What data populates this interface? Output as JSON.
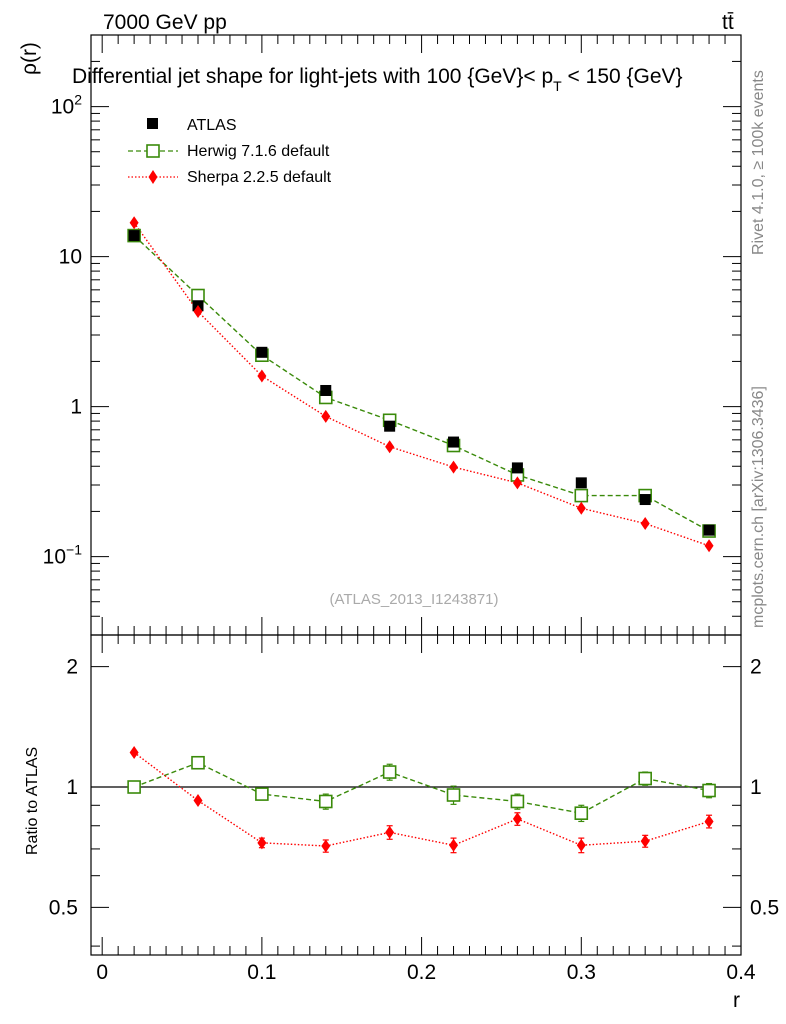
{
  "header": {
    "energy": "7000 GeV pp",
    "process": "tt̄",
    "title": "Differential jet shape for light-jets with 100 {GeV}< p",
    "title_sub": "T",
    "title_tail": " < 150 {GeV}",
    "side_rivet": "Rivet 4.1.0, ≥ 100k events",
    "side_mcplots": "mcplots.cern.ch [arXiv:1306.3436]",
    "watermark": "(ATLAS_2013_I1243871)"
  },
  "colors": {
    "atlas": "#000000",
    "herwig": "#3a8a0a",
    "sherpa": "#ff0000"
  },
  "chart_data": [
    {
      "type": "scatter",
      "id": "main",
      "ylabel": "ρ(r)",
      "xlabel": "",
      "yscale": "log",
      "xlim": [
        -0.007,
        0.4
      ],
      "ylim": [
        0.03,
        300
      ],
      "yticks_major": [
        0.1,
        1,
        10,
        100
      ],
      "ytick_labels": [
        "10^-1",
        "1",
        "10",
        "10^2"
      ],
      "legend": [
        "ATLAS",
        "Herwig 7.1.6 default",
        "Sherpa 2.2.5 default"
      ],
      "x": [
        0.02,
        0.06,
        0.1,
        0.14,
        0.18,
        0.22,
        0.26,
        0.3,
        0.34,
        0.38
      ],
      "series": [
        {
          "name": "ATLAS",
          "marker": "filled-square",
          "values": [
            13.8,
            4.7,
            2.3,
            1.28,
            0.74,
            0.58,
            0.39,
            0.31,
            0.24,
            0.15
          ]
        },
        {
          "name": "Herwig 7.1.6 default",
          "marker": "open-square",
          "line": "dashed",
          "values": [
            13.8,
            5.5,
            2.2,
            1.15,
            0.81,
            0.55,
            0.35,
            0.255,
            0.255,
            0.148
          ]
        },
        {
          "name": "Sherpa 2.2.5 default",
          "marker": "diamond",
          "line": "dotted",
          "values": [
            16.8,
            4.3,
            1.6,
            0.86,
            0.54,
            0.395,
            0.31,
            0.21,
            0.166,
            0.118
          ]
        }
      ]
    },
    {
      "type": "scatter",
      "id": "ratio",
      "ylabel": "Ratio to ATLAS",
      "xlabel": "r",
      "yscale": "log",
      "xlim": [
        -0.007,
        0.4
      ],
      "ylim": [
        0.38,
        2.4
      ],
      "yticks_major": [
        0.5,
        1,
        2
      ],
      "ytick_labels": [
        "0.5",
        "1",
        "2"
      ],
      "xticks": [
        0,
        0.1,
        0.2,
        0.3,
        0.4
      ],
      "xtick_labels": [
        "0",
        "0.1",
        "0.2",
        "0.3",
        "0.4"
      ],
      "x": [
        0.02,
        0.06,
        0.1,
        0.14,
        0.18,
        0.22,
        0.26,
        0.3,
        0.34,
        0.38
      ],
      "series": [
        {
          "name": "Herwig 7.1.6 default",
          "values": [
            1.0,
            1.15,
            0.96,
            0.92,
            1.09,
            0.955,
            0.92,
            0.86,
            1.05,
            0.98
          ],
          "errors": [
            0,
            0,
            0.03,
            0.04,
            0.05,
            0.05,
            0.04,
            0.04,
            0.04,
            0.04
          ]
        },
        {
          "name": "Sherpa 2.2.5 default",
          "values": [
            1.22,
            0.925,
            0.725,
            0.712,
            0.77,
            0.715,
            0.832,
            0.715,
            0.732,
            0.82
          ],
          "errors": [
            0,
            0,
            0.02,
            0.025,
            0.03,
            0.03,
            0.03,
            0.03,
            0.025,
            0.03
          ]
        }
      ]
    }
  ]
}
